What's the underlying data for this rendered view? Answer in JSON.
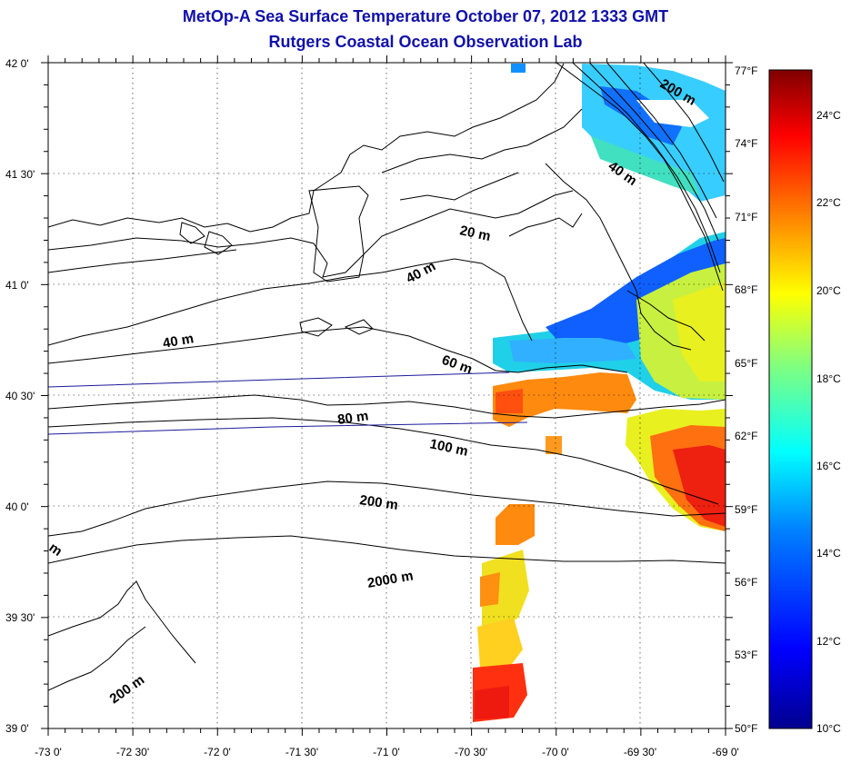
{
  "header": {
    "title": "MetOp-A Sea Surface Temperature October 07, 2012 1333 GMT",
    "subtitle": "Rutgers Coastal Ocean Observation Lab"
  },
  "map": {
    "lon_range": [
      -73,
      -69
    ],
    "lat_range": [
      39,
      42
    ],
    "lon_ticks": [
      "-73 0'",
      "-72 30'",
      "-72 0'",
      "-71 30'",
      "-71 0'",
      "-70 30'",
      "-70 0'",
      "-69 30'",
      "-69 0'"
    ],
    "lat_ticks": [
      "42 0'",
      "41 30'",
      "41 0'",
      "40 30'",
      "40 0'",
      "39 30'",
      "39 0'"
    ],
    "contour_labels": [
      "20 m",
      "40 m",
      "40 m",
      "60 m",
      "80 m",
      "100 m",
      "200 m",
      "2000 m",
      "200 m",
      "200 m",
      "40 m",
      "m"
    ]
  },
  "colorbar": {
    "fahrenheit_labels": [
      "77°F",
      "74°F",
      "71°F",
      "68°F",
      "65°F",
      "62°F",
      "59°F",
      "56°F",
      "53°F",
      "50°F"
    ],
    "celsius_labels": [
      "24°C",
      "22°C",
      "20°C",
      "18°C",
      "16°C",
      "14°C",
      "12°C",
      "10°C"
    ],
    "colors": [
      "#00008f",
      "#0000ff",
      "#0080ff",
      "#00ffff",
      "#80ff80",
      "#ffff00",
      "#ff8000",
      "#ff0000",
      "#800000"
    ]
  }
}
